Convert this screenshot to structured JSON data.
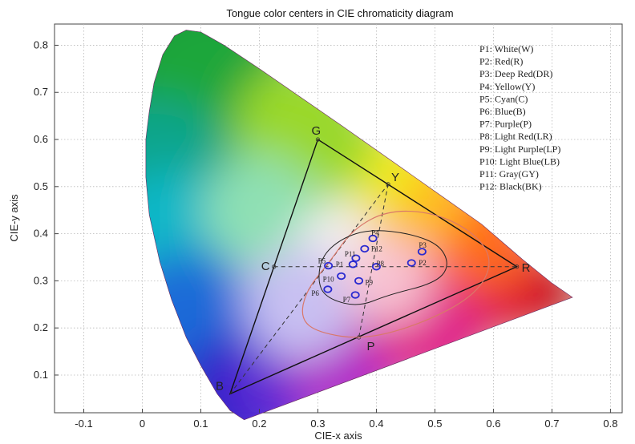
{
  "chart_data": {
    "type": "scatter",
    "title": "Tongue color centers in CIE chromaticity diagram",
    "xlabel": "CIE-x axis",
    "ylabel": "CIE-y axis",
    "xlim": [
      -0.15,
      0.82
    ],
    "ylim": [
      0.02,
      0.845
    ],
    "xticks": [
      "-0.1",
      "0",
      "0.1",
      "0.2",
      "0.3",
      "0.4",
      "0.5",
      "0.6",
      "0.7",
      "0.8"
    ],
    "xtick_values": [
      -0.1,
      0,
      0.1,
      0.2,
      0.3,
      0.4,
      0.5,
      0.6,
      0.7,
      0.8
    ],
    "yticks": [
      "0.1",
      "0.2",
      "0.3",
      "0.4",
      "0.5",
      "0.6",
      "0.7",
      "0.8"
    ],
    "ytick_values": [
      0.1,
      0.2,
      0.3,
      0.4,
      0.5,
      0.6,
      0.7,
      0.8
    ],
    "grid": true,
    "legend_placement": "top-right",
    "legend": [
      "P1:  White(W)",
      "P2:  Red(R)",
      "P3:  Deep Red(DR)",
      "P4:  Yellow(Y)",
      "P5:  Cyan(C)",
      "P6:  Blue(B)",
      "P7:  Purple(P)",
      "P8:  Light Red(LR)",
      "P9:  Light Purple(LP)",
      "P10:  Light Blue(LB)",
      "P11:  Gray(GY)",
      "P12:  Black(BK)"
    ],
    "triangle_vertices": [
      {
        "name": "G",
        "x": 0.3,
        "y": 0.6
      },
      {
        "name": "R",
        "x": 0.64,
        "y": 0.33
      },
      {
        "name": "B",
        "x": 0.15,
        "y": 0.06
      }
    ],
    "reference_points": [
      {
        "name": "Y",
        "x": 0.42,
        "y": 0.505
      },
      {
        "name": "C",
        "x": 0.225,
        "y": 0.33
      },
      {
        "name": "P",
        "x": 0.37,
        "y": 0.18
      }
    ],
    "points": [
      {
        "name": "P1",
        "x": 0.36,
        "y": 0.335
      },
      {
        "name": "P2",
        "x": 0.46,
        "y": 0.338
      },
      {
        "name": "P3",
        "x": 0.478,
        "y": 0.362
      },
      {
        "name": "P4",
        "x": 0.394,
        "y": 0.39
      },
      {
        "name": "P5",
        "x": 0.318,
        "y": 0.332
      },
      {
        "name": "P6",
        "x": 0.317,
        "y": 0.282
      },
      {
        "name": "P7",
        "x": 0.364,
        "y": 0.27
      },
      {
        "name": "P8",
        "x": 0.4,
        "y": 0.33
      },
      {
        "name": "P9",
        "x": 0.37,
        "y": 0.3
      },
      {
        "name": "P10",
        "x": 0.34,
        "y": 0.31
      },
      {
        "name": "P11",
        "x": 0.365,
        "y": 0.348
      },
      {
        "name": "P12",
        "x": 0.38,
        "y": 0.368
      }
    ],
    "marker_color": "#2a2ad0",
    "inner_contour_color": "#222222",
    "outer_contour_color": "#d9786a"
  }
}
